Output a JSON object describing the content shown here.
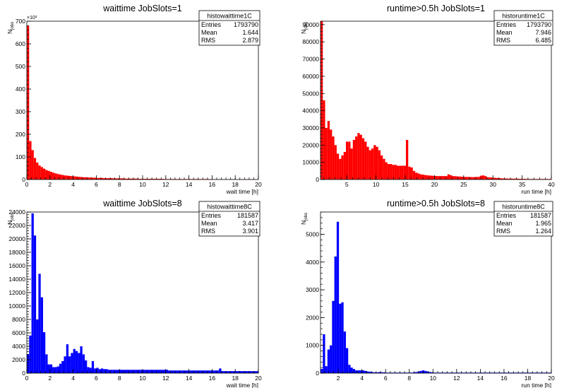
{
  "chart_data": [
    {
      "type": "bar",
      "title": "waittime JobSlots=1",
      "xlabel": "wait time [h]",
      "ylabel": "N_jobs",
      "y_exponent_label": "×10³",
      "xlim": [
        0,
        20
      ],
      "ylim": [
        0,
        700
      ],
      "xticks": [
        0,
        2,
        4,
        6,
        8,
        10,
        12,
        14,
        16,
        18,
        20
      ],
      "yticks": [
        0,
        100,
        200,
        300,
        400,
        500,
        600,
        700
      ],
      "bar_color": "#ff0000",
      "stats": {
        "name": "histowaittime1C",
        "entries": "1793790",
        "mean": "1.644",
        "rms": "2.879"
      },
      "bin_width": 0.2,
      "x_start": 0,
      "values": [
        680,
        170,
        130,
        95,
        75,
        62,
        55,
        48,
        42,
        38,
        34,
        30,
        27,
        24,
        22,
        20,
        18,
        17,
        16,
        15,
        14,
        13,
        12,
        11,
        10,
        10,
        9,
        9,
        8,
        8,
        7,
        7,
        7,
        6,
        6,
        6,
        6,
        5,
        5,
        5,
        5,
        5,
        4,
        4,
        4,
        4,
        4,
        4,
        3,
        3,
        3,
        3,
        3,
        3,
        3,
        3,
        3,
        3,
        3,
        2,
        2,
        2,
        2,
        2,
        2,
        2,
        2,
        2,
        2,
        2,
        2,
        2,
        2,
        2,
        2,
        2,
        2,
        2,
        2,
        1,
        1,
        1,
        1,
        1,
        1,
        1,
        1,
        1,
        1,
        1,
        1,
        1,
        1,
        1,
        1,
        1,
        1,
        1,
        1,
        1
      ]
    },
    {
      "type": "bar",
      "title": "runtime>0.5h JobSlots=1",
      "xlabel": "run time [h]",
      "ylabel": "N_jobs",
      "xlim": [
        0.5,
        40
      ],
      "ylim": [
        0,
        92000
      ],
      "xticks": [
        5,
        10,
        15,
        20,
        25,
        30,
        35,
        40
      ],
      "yticks": [
        0,
        10000,
        20000,
        30000,
        40000,
        50000,
        60000,
        70000,
        80000,
        90000
      ],
      "bar_color": "#ff0000",
      "stats": {
        "name": "historuntime1C",
        "entries": "1793790",
        "mean": "7.946",
        "rms": "6.485"
      },
      "bin_width": 0.395,
      "x_start": 0.5,
      "values": [
        92000,
        46000,
        30000,
        34000,
        29000,
        25000,
        20000,
        15000,
        12000,
        14000,
        16000,
        22000,
        22000,
        18000,
        23000,
        25000,
        27000,
        26000,
        24000,
        22000,
        19000,
        17000,
        18000,
        20000,
        19000,
        17000,
        14000,
        12000,
        10000,
        9000,
        9000,
        8500,
        8500,
        8000,
        8000,
        8000,
        8000,
        23000,
        7500,
        7000,
        5000,
        4000,
        3500,
        3000,
        2800,
        2600,
        2400,
        2300,
        2200,
        2100,
        2000,
        2000,
        2000,
        2000,
        2000,
        3000,
        2500,
        2000,
        1900,
        1800,
        1700,
        1600,
        1500,
        1500,
        1500,
        1400,
        1400,
        1500,
        1500,
        2200,
        2400,
        2000,
        1300,
        1200,
        1100,
        1000,
        900,
        800,
        700,
        600,
        600,
        500,
        500,
        500,
        500,
        500,
        400,
        400,
        400,
        300,
        300,
        300,
        300,
        300,
        300,
        300,
        300,
        300,
        300,
        300
      ]
    },
    {
      "type": "bar",
      "title": "waittime JobSlots=8",
      "xlabel": "wait time [h]",
      "ylabel": "N_jobs",
      "xlim": [
        0,
        20
      ],
      "ylim": [
        0,
        24000
      ],
      "xticks": [
        0,
        2,
        4,
        6,
        8,
        10,
        12,
        14,
        16,
        18,
        20
      ],
      "yticks": [
        0,
        2000,
        4000,
        6000,
        8000,
        10000,
        12000,
        14000,
        16000,
        18000,
        20000,
        22000,
        24000
      ],
      "bar_color": "#0000ff",
      "stats": {
        "name": "histowaittime8C",
        "entries": "181587",
        "mean": "3.417",
        "rms": "3.901"
      },
      "bin_width": 0.2,
      "x_start": 0,
      "values": [
        2800,
        5600,
        23800,
        20500,
        8000,
        14800,
        11300,
        6100,
        2800,
        1300,
        1300,
        900,
        900,
        1000,
        1400,
        1800,
        2500,
        4300,
        2500,
        3000,
        3600,
        3300,
        3000,
        4000,
        2800,
        1900,
        900,
        800,
        1800,
        700,
        800,
        600,
        700,
        600,
        600,
        500,
        500,
        500,
        500,
        500,
        500,
        500,
        500,
        500,
        500,
        500,
        500,
        500,
        500,
        500,
        500,
        500,
        500,
        500,
        500,
        500,
        500,
        500,
        500,
        500,
        500,
        400,
        400,
        400,
        400,
        400,
        400,
        400,
        400,
        400,
        400,
        400,
        400,
        400,
        400,
        400,
        400,
        400,
        400,
        400,
        400,
        400,
        400,
        700,
        300,
        300,
        300,
        300,
        300,
        300,
        300,
        300,
        300,
        300,
        300,
        300,
        300,
        300,
        300,
        300
      ]
    },
    {
      "type": "bar",
      "title": "runtime>0.5h JobSlots=8",
      "xlabel": "run time [h]",
      "ylabel": "N_jobs",
      "xlim": [
        0.5,
        20
      ],
      "ylim": [
        0,
        5800
      ],
      "xticks": [
        2,
        4,
        6,
        8,
        10,
        12,
        14,
        16,
        18,
        20
      ],
      "yticks": [
        0,
        1000,
        2000,
        3000,
        4000,
        5000
      ],
      "bar_color": "#0000ff",
      "stats": {
        "name": "historuntime8C",
        "entries": "181587",
        "mean": "1.965",
        "rms": "1.264"
      },
      "bin_width": 0.195,
      "x_start": 0.5,
      "values": [
        150,
        1400,
        250,
        850,
        1000,
        2600,
        4200,
        5450,
        2500,
        2550,
        1500,
        900,
        300,
        200,
        150,
        100,
        100,
        100,
        100,
        80,
        60,
        50,
        40,
        30,
        30,
        40,
        30,
        30,
        20,
        20,
        20,
        20,
        20,
        20,
        20,
        20,
        20,
        20,
        20,
        20,
        30,
        40,
        60,
        80,
        100,
        80,
        60,
        40,
        30,
        20,
        20,
        20,
        20,
        20,
        20,
        20,
        20,
        20,
        20,
        20,
        20,
        20,
        20,
        20,
        20,
        20,
        20,
        20,
        20,
        20,
        20,
        20,
        20,
        20,
        20,
        20,
        20,
        20,
        20,
        20,
        20,
        20,
        20,
        20,
        20,
        20,
        20,
        20,
        20,
        20,
        20,
        20,
        20,
        20,
        20,
        20,
        20,
        20,
        20,
        20
      ]
    }
  ],
  "stats_labels": {
    "entries": "Entries",
    "mean": "Mean",
    "rms": "RMS"
  }
}
